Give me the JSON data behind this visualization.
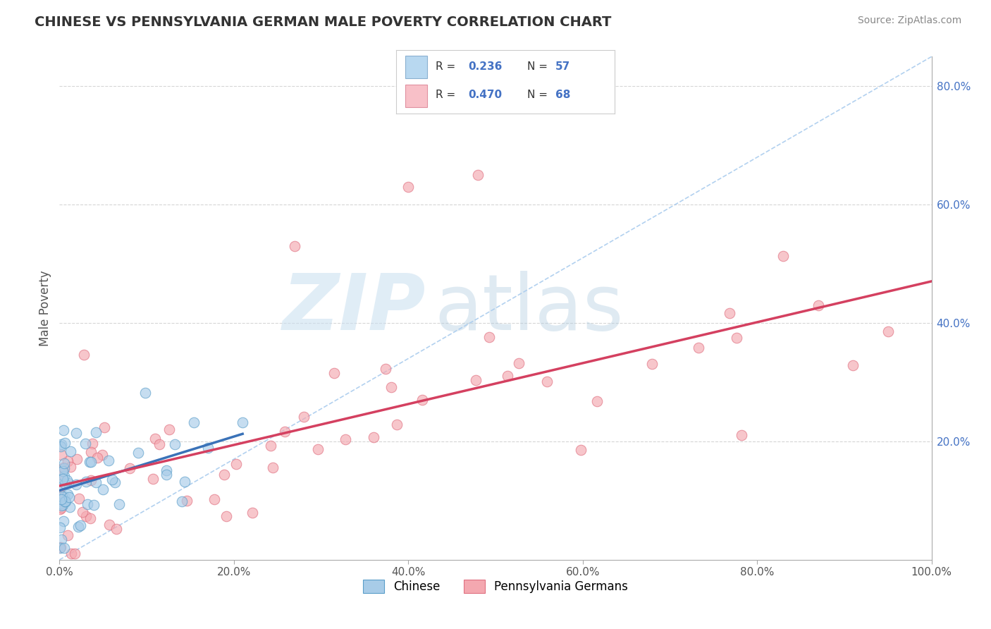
{
  "title": "CHINESE VS PENNSYLVANIA GERMAN MALE POVERTY CORRELATION CHART",
  "source": "Source: ZipAtlas.com",
  "ylabel": "Male Poverty",
  "xlim": [
    0.0,
    1.0
  ],
  "ylim": [
    0.0,
    0.85
  ],
  "x_ticks": [
    0.0,
    0.2,
    0.4,
    0.6,
    0.8,
    1.0
  ],
  "x_tick_labels": [
    "0.0%",
    "20.0%",
    "40.0%",
    "60.0%",
    "80.0%",
    "100.0%"
  ],
  "y_ticks_right": [
    0.2,
    0.4,
    0.6,
    0.8
  ],
  "y_tick_labels_right": [
    "20.0%",
    "40.0%",
    "60.0%",
    "80.0%"
  ],
  "chinese_R": 0.236,
  "chinese_N": 57,
  "pagerman_R": 0.47,
  "pagerman_N": 68,
  "chinese_color": "#a8cce8",
  "chinese_edge_color": "#5a9ec9",
  "pagerman_color": "#f4a8b0",
  "pagerman_edge_color": "#e07080",
  "chinese_line_color": "#3a72b8",
  "pagerman_line_color": "#d44060",
  "diagonal_color": "#aaccee",
  "grid_color": "#cccccc",
  "background_color": "#ffffff",
  "right_label_color": "#4472c4",
  "title_color": "#333333",
  "source_color": "#888888"
}
